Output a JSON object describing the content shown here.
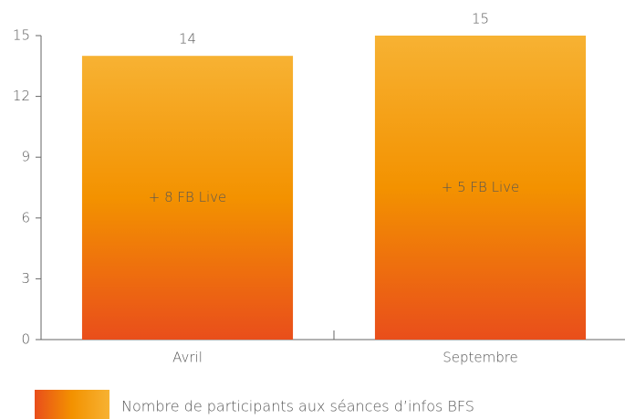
{
  "chart_data": {
    "type": "bar",
    "categories": [
      "Avril",
      "Septembre"
    ],
    "series": [
      {
        "name": "Nombre de participants aux séances d’infos BFS",
        "values": [
          14,
          15
        ],
        "gradient": [
          "#e94e1b",
          "#f39200",
          "#f7b233"
        ]
      }
    ],
    "annotations": [
      "+ 8 FB Live",
      "+ 5 FB Live"
    ],
    "ylim": [
      0,
      15
    ],
    "yticks": [
      0,
      3,
      6,
      9,
      12,
      15
    ],
    "grid": false
  }
}
